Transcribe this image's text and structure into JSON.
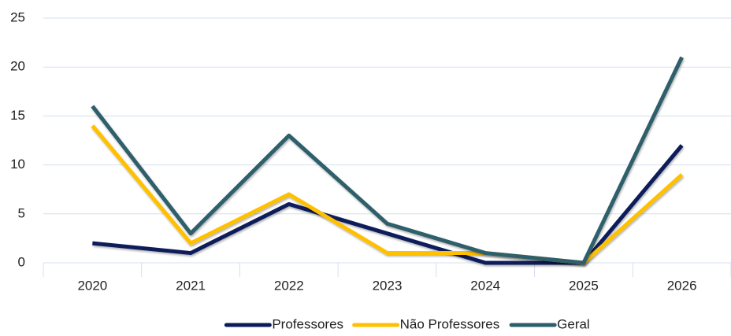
{
  "chart_data": {
    "type": "line",
    "categories": [
      "2020",
      "2021",
      "2022",
      "2023",
      "2024",
      "2025",
      "2026"
    ],
    "series": [
      {
        "name": "Professores",
        "color": "#0c1c5a",
        "values": [
          2,
          1,
          6,
          3,
          0,
          0,
          12
        ]
      },
      {
        "name": "Não Professores",
        "color": "#ffc000",
        "values": [
          14,
          2,
          7,
          1,
          1,
          0,
          9
        ]
      },
      {
        "name": "Geral",
        "color": "#2d5f6b",
        "values": [
          16,
          3,
          13,
          4,
          1,
          0,
          21
        ]
      }
    ],
    "ylim": [
      0,
      25
    ],
    "yticks": [
      0,
      5,
      10,
      15,
      20,
      25
    ],
    "grid": true,
    "legend": "bottom"
  }
}
